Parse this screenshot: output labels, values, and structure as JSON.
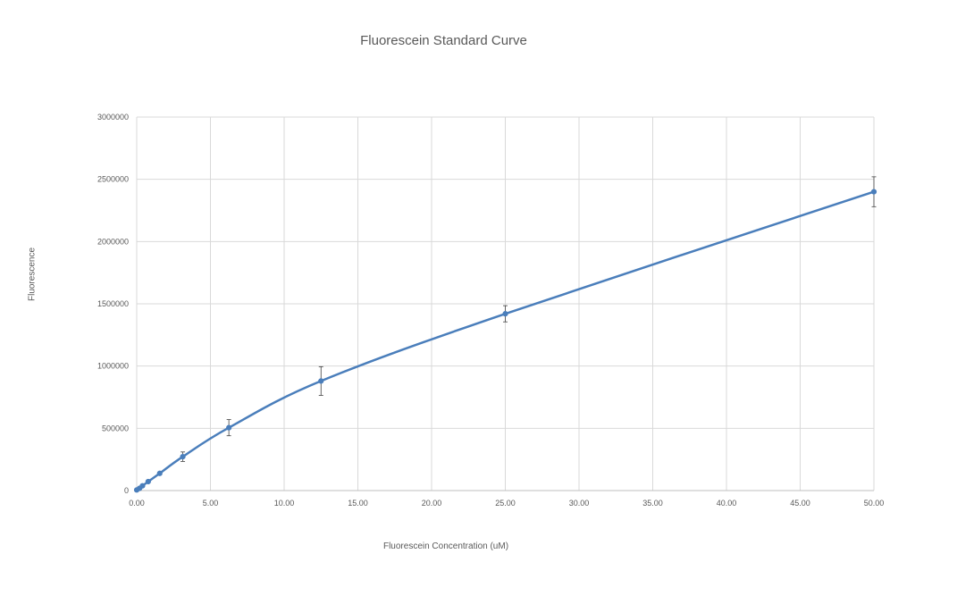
{
  "chart_data": {
    "type": "scatter",
    "title": "Fluorescein Standard Curve",
    "xlabel": "Fluorescein Concentration (uM)",
    "ylabel": "Fluorescence",
    "xlim": [
      0,
      50
    ],
    "ylim": [
      0,
      3000000
    ],
    "x_ticks": [
      "0.00",
      "5.00",
      "10.00",
      "15.00",
      "20.00",
      "25.00",
      "30.00",
      "35.00",
      "40.00",
      "45.00",
      "50.00"
    ],
    "y_ticks": [
      "0",
      "500000",
      "1000000",
      "1500000",
      "2000000",
      "2500000",
      "3000000"
    ],
    "x_tick_values": [
      0,
      5,
      10,
      15,
      20,
      25,
      30,
      35,
      40,
      45,
      50
    ],
    "y_tick_values": [
      0,
      500000,
      1000000,
      1500000,
      2000000,
      2500000,
      3000000
    ],
    "grid": true,
    "smooth_line": true,
    "series_color": "#4a7ebb",
    "series": [
      {
        "x": [
          0,
          0.195,
          0.39,
          0.78,
          1.56,
          3.125,
          6.25,
          12.5,
          25,
          50
        ],
        "y": [
          5000,
          18000,
          38000,
          72000,
          138000,
          272000,
          505000,
          880000,
          1420000,
          2400000
        ],
        "error": [
          2000,
          3000,
          4000,
          6000,
          10000,
          38000,
          65000,
          115000,
          65000,
          120000
        ]
      }
    ]
  }
}
